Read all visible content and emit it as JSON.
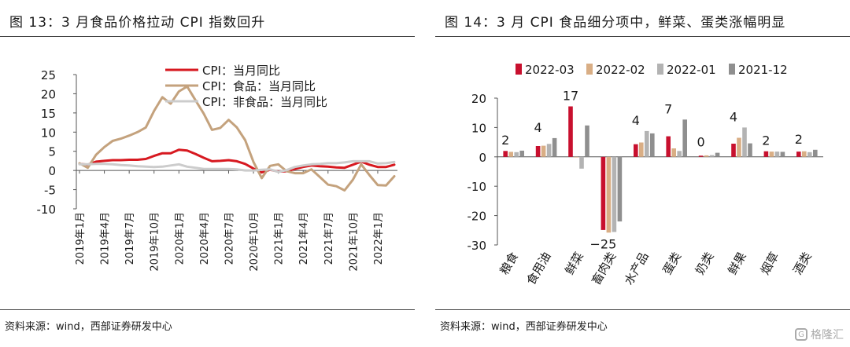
{
  "left": {
    "title": "图 13：3 月食品价格拉动 CPI 指数回升",
    "source": "资料来源：wind，西部证券研发中心",
    "chart_data": {
      "type": "line",
      "x": [
        "2019年1月",
        "2019年2月",
        "2019年3月",
        "2019年4月",
        "2019年5月",
        "2019年6月",
        "2019年7月",
        "2019年8月",
        "2019年9月",
        "2019年10月",
        "2019年11月",
        "2019年12月",
        "2020年1月",
        "2020年2月",
        "2020年3月",
        "2020年4月",
        "2020年5月",
        "2020年6月",
        "2020年7月",
        "2020年8月",
        "2020年9月",
        "2020年10月",
        "2020年11月",
        "2020年12月",
        "2021年1月",
        "2021年2月",
        "2021年3月",
        "2021年4月",
        "2021年5月",
        "2021年6月",
        "2021年7月",
        "2021年8月",
        "2021年9月",
        "2021年10月",
        "2021年11月",
        "2021年12月",
        "2022年1月",
        "2022年2月",
        "2022年3月"
      ],
      "tick_labels": [
        "2019年1月",
        "2019年4月",
        "2019年7月",
        "2019年10月",
        "2020年1月",
        "2020年4月",
        "2020年7月",
        "2020年10月",
        "2021年1月",
        "2021年4月",
        "2021年7月",
        "2021年10月",
        "2022年1月"
      ],
      "ylim": [
        -10,
        25
      ],
      "yticks": [
        -10,
        -5,
        0,
        5,
        10,
        15,
        20,
        25
      ],
      "legend_position": "top-center",
      "series": [
        {
          "name": "CPI：当月同比",
          "color": "#d71920",
          "values": [
            1.7,
            1.5,
            2.3,
            2.5,
            2.7,
            2.7,
            2.8,
            2.8,
            3.0,
            3.8,
            4.5,
            4.5,
            5.4,
            5.2,
            4.3,
            3.3,
            2.4,
            2.5,
            2.7,
            2.4,
            1.7,
            0.5,
            -0.5,
            0.2,
            -0.3,
            -0.2,
            0.4,
            0.9,
            1.3,
            1.1,
            1.0,
            0.8,
            0.7,
            1.5,
            2.3,
            1.5,
            0.9,
            0.9,
            1.5
          ]
        },
        {
          "name": "CPI：食品：当月同比",
          "color": "#c4a27d",
          "values": [
            1.9,
            0.7,
            4.1,
            6.1,
            7.7,
            8.3,
            9.1,
            10.0,
            11.2,
            15.5,
            19.1,
            17.4,
            20.6,
            21.9,
            18.3,
            14.8,
            10.6,
            11.1,
            13.2,
            11.2,
            7.9,
            2.2,
            -2.0,
            1.2,
            1.6,
            -0.2,
            -0.7,
            -0.7,
            0.3,
            -1.7,
            -3.7,
            -4.1,
            -5.2,
            -2.4,
            1.6,
            -1.2,
            -3.8,
            -3.9,
            -1.5
          ]
        },
        {
          "name": "CPI：非食品：当月同比",
          "color": "#cccccc",
          "values": [
            1.6,
            1.6,
            1.7,
            1.7,
            1.6,
            1.4,
            1.3,
            1.1,
            1.0,
            0.9,
            1.0,
            1.3,
            1.6,
            1.0,
            0.7,
            0.4,
            0.4,
            0.4,
            0.4,
            0.3,
            0.0,
            0.0,
            0.2,
            0.3,
            -0.4,
            0.1,
            0.9,
            1.3,
            1.6,
            1.7,
            1.9,
            1.9,
            2.1,
            2.4,
            2.4,
            2.4,
            1.8,
            1.9,
            2.2
          ]
        }
      ]
    }
  },
  "right": {
    "title": "图 14：3 月 CPI 食品细分项中，鲜菜、蛋类涨幅明显",
    "source": "资料来源：wind，西部证券研发中心",
    "chart_data": {
      "type": "bar",
      "categories": [
        "粮食",
        "食用油",
        "鲜菜",
        "畜肉类",
        "水产品",
        "蛋类",
        "奶类",
        "鲜果",
        "烟草",
        "酒类"
      ],
      "ylim": [
        -30,
        20
      ],
      "yticks": [
        -30,
        -20,
        -10,
        0,
        10,
        20
      ],
      "legend_position": "top",
      "data_labels": [
        "2",
        "4",
        "17",
        "−25",
        "4",
        "7",
        "0",
        "4",
        "2",
        "2"
      ],
      "series": [
        {
          "name": "2022-03",
          "color": "#c8102e",
          "values": [
            2.0,
            3.7,
            17.2,
            -24.9,
            4.3,
            7.0,
            0.4,
            4.5,
            1.9,
            1.8
          ]
        },
        {
          "name": "2022-02",
          "color": "#d9ae85",
          "values": [
            1.7,
            3.8,
            -0.1,
            -25.8,
            4.9,
            2.9,
            0.5,
            6.5,
            1.8,
            1.9
          ]
        },
        {
          "name": "2022-01",
          "color": "#b3b3b3",
          "values": [
            1.6,
            4.4,
            -4.0,
            -25.6,
            8.8,
            2.0,
            0.6,
            10.0,
            1.8,
            1.6
          ]
        },
        {
          "name": "2021-12",
          "color": "#8f8f8f",
          "values": [
            2.1,
            6.4,
            10.7,
            -22.0,
            8.0,
            12.7,
            1.4,
            4.6,
            1.7,
            2.4
          ]
        }
      ]
    }
  },
  "watermark": {
    "text": "格隆汇",
    "icon": "g-logo-icon"
  }
}
